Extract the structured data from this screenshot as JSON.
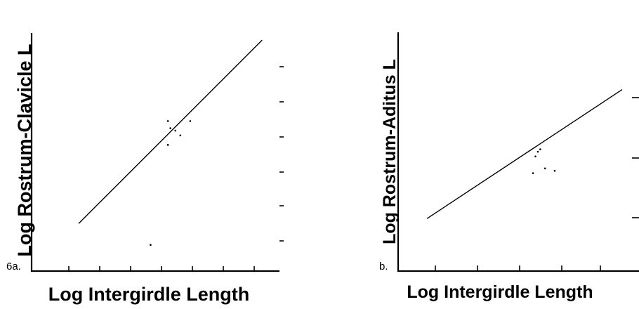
{
  "chart_data": [
    {
      "panel": "6a.",
      "type": "scatter",
      "xlabel": "Log Intergirdle Length",
      "ylabel": "Log Rostrum-Clavicle L",
      "grid": false,
      "points": [
        {
          "x": 0.48,
          "y": 0.11
        },
        {
          "x": 0.55,
          "y": 0.63
        },
        {
          "x": 0.56,
          "y": 0.6
        },
        {
          "x": 0.58,
          "y": 0.59
        },
        {
          "x": 0.6,
          "y": 0.57
        },
        {
          "x": 0.55,
          "y": 0.53
        },
        {
          "x": 0.64,
          "y": 0.63
        }
      ],
      "fit_line": [
        {
          "x": 0.19,
          "y": 0.2
        },
        {
          "x": 0.93,
          "y": 0.97
        }
      ]
    },
    {
      "panel": "b.",
      "type": "scatter",
      "xlabel": "Log Intergirdle Length",
      "ylabel": "Log Rostrum-Aditus L",
      "grid": false,
      "points": [
        {
          "x": 0.57,
          "y": 0.48
        },
        {
          "x": 0.58,
          "y": 0.5
        },
        {
          "x": 0.59,
          "y": 0.51
        },
        {
          "x": 0.56,
          "y": 0.41
        },
        {
          "x": 0.61,
          "y": 0.43
        },
        {
          "x": 0.65,
          "y": 0.42
        }
      ],
      "fit_line": [
        {
          "x": 0.12,
          "y": 0.22
        },
        {
          "x": 0.93,
          "y": 0.76
        }
      ]
    }
  ]
}
